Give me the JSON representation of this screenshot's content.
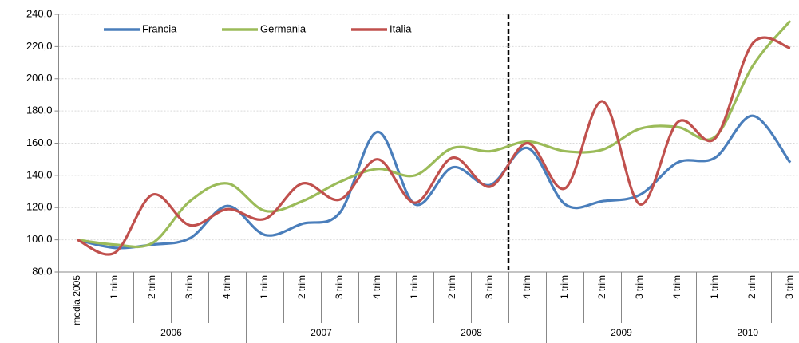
{
  "chart_data": {
    "type": "line",
    "categories": [
      "media 2005",
      "1 trim",
      "2 trim",
      "3 trim",
      "4 trim",
      "1 trim",
      "2 trim",
      "3 trim",
      "4 trim",
      "1 trim",
      "2 trim",
      "3 trim",
      "4 trim",
      "1 trim",
      "2 trim",
      "3 trim",
      "4 trim",
      "1 trim",
      "2 trim",
      "3 trim"
    ],
    "category_groups": [
      {
        "label": "2006",
        "span": 4
      },
      {
        "label": "2007",
        "span": 4
      },
      {
        "label": "2008",
        "span": 4
      },
      {
        "label": "2009",
        "span": 4
      },
      {
        "label": "2010",
        "span": 3
      }
    ],
    "series": [
      {
        "name": "Francia",
        "color": "#4a7ebb",
        "values": [
          100,
          95,
          97,
          101,
          121,
          103,
          110,
          117,
          167,
          122,
          145,
          134,
          157,
          122,
          124,
          128,
          148,
          151,
          177,
          148
        ]
      },
      {
        "name": "Germania",
        "color": "#9bbb59",
        "values": [
          100,
          97,
          98,
          124,
          135,
          118,
          124,
          136,
          144,
          140,
          157,
          155,
          161,
          155,
          156,
          169,
          170,
          164,
          208,
          236
        ]
      },
      {
        "name": "Italia",
        "color": "#c0504d",
        "values": [
          100,
          92,
          128,
          109,
          119,
          113,
          135,
          125,
          150,
          123,
          151,
          133,
          160,
          132,
          186,
          122,
          173,
          163,
          222,
          219
        ]
      }
    ],
    "ylim": [
      80,
      240
    ],
    "yticks": [
      {
        "value": 80,
        "label": "80,0"
      },
      {
        "value": 100,
        "label": "100,0"
      },
      {
        "value": 120,
        "label": "120,0"
      },
      {
        "value": 140,
        "label": "140,0"
      },
      {
        "value": 160,
        "label": "160,0"
      },
      {
        "value": 180,
        "label": "180,0"
      },
      {
        "value": 200,
        "label": "200,0"
      },
      {
        "value": 220,
        "label": "220,0"
      },
      {
        "value": 240,
        "label": "240,0"
      }
    ],
    "grid": true,
    "smooth": true,
    "legend": "top-left"
  }
}
